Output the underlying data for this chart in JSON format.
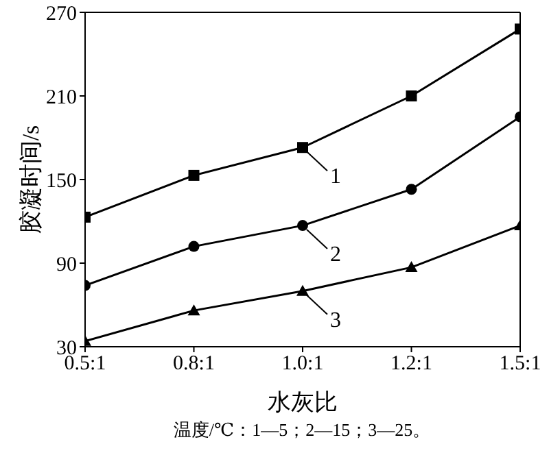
{
  "chart_data": {
    "type": "line",
    "xlabel": "水灰比",
    "ylabel": "胶凝时间/s",
    "categories": [
      "0.5:1",
      "0.8:1",
      "1.0:1",
      "1.2:1",
      "1.5:1"
    ],
    "series": [
      {
        "name": "1",
        "color": "#000000",
        "marker": "square",
        "values": [
          123,
          153,
          173,
          210,
          258
        ]
      },
      {
        "name": "2",
        "color": "#000000",
        "marker": "circle",
        "values": [
          74,
          102,
          117,
          143,
          195
        ]
      },
      {
        "name": "3",
        "color": "#000000",
        "marker": "triangle",
        "values": [
          34,
          56,
          70,
          87,
          117
        ]
      }
    ],
    "ylim": [
      30,
      270
    ],
    "yticks": [
      30,
      90,
      150,
      210,
      270
    ],
    "grid": false,
    "legend": "center",
    "line_style": "solid",
    "annotations": [
      "温度/℃：1—5；2—15；3—25。"
    ]
  }
}
